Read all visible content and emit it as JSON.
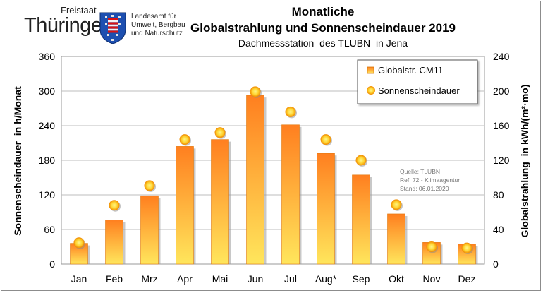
{
  "header": {
    "logo_small": "Freistaat",
    "logo_big": "Thüringen",
    "agency_lines": [
      "Landesamt für",
      "Umwelt, Bergbau",
      "und Naturschutz"
    ]
  },
  "colors": {
    "bar_top": "#ff7f1f",
    "bar_bottom": "#ffe65c",
    "dot_center": "#ffef6a",
    "dot_edge": "#f08a00"
  },
  "chart_data": {
    "type": "bar",
    "title": "Monatliche",
    "title_line2": "Globalstrahlung und Sonnenscheindauer 2019",
    "subtitle": "Dachmessstation  des TLUBN  in Jena",
    "categories": [
      "Jan",
      "Feb",
      "Mrz",
      "Apr",
      "Mai",
      "Jun",
      "Jul",
      "Aug*",
      "Sep",
      "Okt",
      "Nov",
      "Dez"
    ],
    "ylabel_left": "Sonnenscheindauer  in h/Monat",
    "ylabel_right": "Globalstrahlung  in kWh/(m²·mo)",
    "ylim_left": [
      0,
      360
    ],
    "ylim_right": [
      0,
      240
    ],
    "yticks_left": [
      "0",
      "60",
      "120",
      "180",
      "240",
      "300",
      "360"
    ],
    "yticks_right": [
      "0",
      "40",
      "80",
      "120",
      "160",
      "200",
      "240"
    ],
    "grid": true,
    "legend_position": "top-right",
    "series": [
      {
        "name": "Globalstr. CM11",
        "kind": "bar",
        "axis": "right",
        "values": [
          24,
          51,
          79,
          136,
          144,
          195,
          161,
          128,
          103,
          58,
          25,
          23
        ]
      },
      {
        "name": "Sonnenscheindauer",
        "kind": "marker",
        "axis": "left",
        "values": [
          37,
          102,
          136,
          216,
          228,
          299,
          264,
          216,
          180,
          103,
          30,
          28
        ]
      }
    ],
    "source_note": [
      "Quelle: TLUBN",
      "Ref. 72 - Klimaagentur",
      "Stand: 06.01.2020"
    ]
  }
}
